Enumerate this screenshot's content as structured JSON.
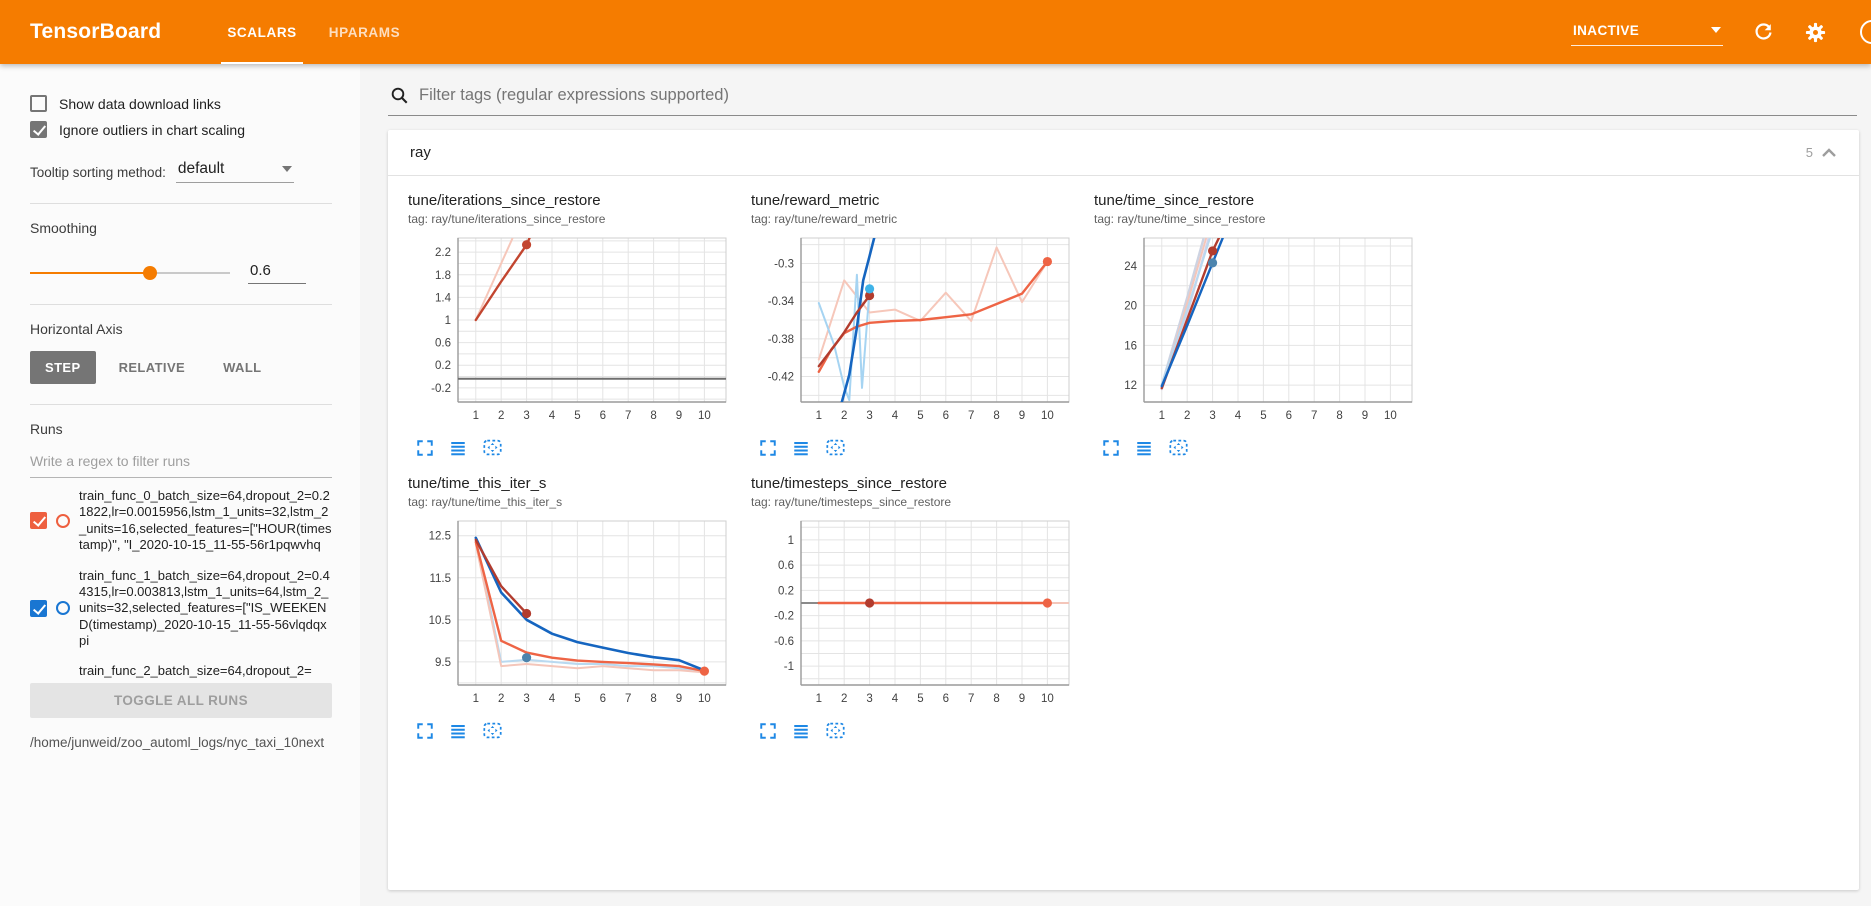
{
  "header": {
    "title": "TensorBoard",
    "tabs": [
      {
        "label": "SCALARS",
        "active": true
      },
      {
        "label": "HPARAMS",
        "active": false
      }
    ],
    "status_select": {
      "value": "INACTIVE"
    },
    "colors": {
      "bar": "#f57c00",
      "icon_blue": "#1e88e5"
    }
  },
  "sidebar": {
    "checkboxes": [
      {
        "label": "Show data download links",
        "checked": false
      },
      {
        "label": "Ignore outliers in chart scaling",
        "checked": true
      }
    ],
    "tooltip_sorting": {
      "label": "Tooltip sorting method:",
      "value": "default"
    },
    "smoothing": {
      "label": "Smoothing",
      "value": "0.6",
      "percent": 60
    },
    "horizontal_axis": {
      "label": "Horizontal Axis",
      "options": [
        "STEP",
        "RELATIVE",
        "WALL"
      ],
      "selected": "STEP"
    },
    "runs": {
      "label": "Runs",
      "filter_placeholder": "Write a regex to filter runs",
      "items": [
        {
          "name": "train_func_0_batch_size=64,dropout_2=0.21822,lr=0.0015956,lstm_1_units=32,lstm_2_units=16,selected_features=[\"HOUR(timestamp)\", \"I_2020-10-15_11-55-56r1pqwvhq",
          "checked": true,
          "color": "#ee5f3f"
        },
        {
          "name": "train_func_1_batch_size=64,dropout_2=0.44315,lr=0.003813,lstm_1_units=64,lstm_2_units=32,selected_features=[\"IS_WEEKEND(timestamp)_2020-10-15_11-55-56vlqdqxpi",
          "checked": true,
          "color": "#1976d2"
        },
        {
          "name": "train_func_2_batch_size=64,dropout_2=",
          "checked": true,
          "color": "#c2452f"
        }
      ],
      "toggle_all_label": "TOGGLE ALL RUNS",
      "log_path": "/home/junweid/zoo_automl_logs/nyc_taxi_10next"
    }
  },
  "main": {
    "filter_placeholder": "Filter tags (regular expressions supported)",
    "section": {
      "name": "ray",
      "count": "5"
    }
  },
  "chart_data": [
    {
      "type": "line",
      "title": "tune/iterations_since_restore",
      "tag": "tag: ray/tune/iterations_since_restore",
      "x_ticks": [
        1,
        2,
        3,
        4,
        5,
        6,
        7,
        8,
        9,
        10
      ],
      "y_ticks": [
        2.2,
        1.8,
        1.4,
        1,
        0.6,
        0.2,
        -0.2
      ],
      "xlim": [
        0.3,
        10.85
      ],
      "ylim": [
        -0.45,
        2.45
      ],
      "series": [
        {
          "name": "train_func_0 raw",
          "color": "#f6c7ba",
          "width": 2,
          "points": [
            [
              1,
              1
            ],
            [
              2,
              2
            ],
            [
              3,
              3
            ]
          ]
        },
        {
          "name": "train_func_0 smoothed",
          "color": "#c2452f",
          "width": 2.4,
          "points": [
            [
              1,
              1
            ],
            [
              2,
              1.68
            ],
            [
              3,
              2.33
            ],
            [
              3.6,
              2.95
            ]
          ]
        },
        {
          "name": "flat zero run",
          "color": "#6f6f6f",
          "width": 2,
          "points": [
            [
              0.3,
              -0.04
            ],
            [
              10.85,
              -0.04
            ]
          ]
        }
      ],
      "markers": [
        {
          "x": 3,
          "y": 2.33,
          "color": "#c2452f"
        }
      ]
    },
    {
      "type": "line",
      "title": "tune/reward_metric",
      "tag": "tag: ray/tune/reward_metric",
      "x_ticks": [
        1,
        2,
        3,
        4,
        5,
        6,
        7,
        8,
        9,
        10
      ],
      "y_ticks": [
        -0.3,
        -0.34,
        -0.38,
        -0.42
      ],
      "xlim": [
        0.3,
        10.85
      ],
      "ylim": [
        -0.447,
        -0.273
      ],
      "series": [
        {
          "name": "train_func_0 raw",
          "color": "#f6c7ba",
          "width": 2,
          "points": [
            [
              1,
              -0.402
            ],
            [
              2,
              -0.318
            ],
            [
              3,
              -0.352
            ],
            [
              4,
              -0.349
            ],
            [
              5,
              -0.361
            ],
            [
              6,
              -0.331
            ],
            [
              7,
              -0.361
            ],
            [
              8,
              -0.283
            ],
            [
              9,
              -0.341
            ],
            [
              10,
              -0.298
            ]
          ]
        },
        {
          "name": "train_func_1 raw",
          "color": "#a6d4f2",
          "width": 2,
          "points": [
            [
              1,
              -0.342
            ],
            [
              1.6,
              -0.386
            ],
            [
              2,
              -0.431
            ],
            [
              2.2,
              -0.445
            ],
            [
              2.5,
              -0.312
            ],
            [
              2.7,
              -0.432
            ],
            [
              3,
              -0.327
            ]
          ]
        },
        {
          "name": "train_func_0 smoothed",
          "color": "#ee6445",
          "width": 2.4,
          "points": [
            [
              1,
              -0.415
            ],
            [
              1.5,
              -0.391
            ],
            [
              2,
              -0.374
            ],
            [
              2.5,
              -0.367
            ],
            [
              3,
              -0.363
            ],
            [
              4,
              -0.361
            ],
            [
              5,
              -0.36
            ],
            [
              6,
              -0.357
            ],
            [
              7,
              -0.354
            ],
            [
              8,
              -0.343
            ],
            [
              9,
              -0.332
            ],
            [
              10,
              -0.298
            ]
          ]
        },
        {
          "name": "train_func_1 smoothed",
          "color": "#1565c0",
          "width": 2.6,
          "points": [
            [
              1.9,
              -0.448
            ],
            [
              2.2,
              -0.418
            ],
            [
              2.5,
              -0.368
            ],
            [
              2.75,
              -0.318
            ],
            [
              3,
              -0.292
            ],
            [
              3.35,
              -0.255
            ]
          ]
        },
        {
          "name": "train_func_2 smoothed",
          "color": "#b23c2e",
          "width": 2.4,
          "points": [
            [
              1,
              -0.409
            ],
            [
              1.6,
              -0.388
            ],
            [
              2,
              -0.373
            ],
            [
              2.5,
              -0.352
            ],
            [
              3,
              -0.334
            ]
          ]
        }
      ],
      "markers": [
        {
          "x": 3,
          "y": -0.334,
          "color": "#b23c2e"
        },
        {
          "x": 3,
          "y": -0.327,
          "color": "#3fb3e8"
        },
        {
          "x": 10,
          "y": -0.298,
          "color": "#ee6445"
        }
      ]
    },
    {
      "type": "line",
      "title": "tune/time_since_restore",
      "tag": "tag: ray/tune/time_since_restore",
      "x_ticks": [
        1,
        2,
        3,
        4,
        5,
        6,
        7,
        8,
        9,
        10
      ],
      "y_ticks": [
        24,
        20,
        16,
        12
      ],
      "xlim": [
        0.3,
        10.85
      ],
      "ylim": [
        10.3,
        26.8
      ],
      "series": [
        {
          "name": "raw lavender",
          "color": "#d8d2e8",
          "width": 2.4,
          "points": [
            [
              1,
              11.6
            ],
            [
              2,
              19.2
            ],
            [
              2.85,
              26.8
            ]
          ]
        },
        {
          "name": "raw gray-blue",
          "color": "#cdd3e2",
          "width": 2.4,
          "points": [
            [
              1,
              12
            ],
            [
              2,
              20.8
            ],
            [
              2.65,
              26.8
            ]
          ]
        },
        {
          "name": "train_func_0 raw",
          "color": "#f4c6ba",
          "width": 2,
          "points": [
            [
              1,
              11.8
            ],
            [
              2,
              20.2
            ],
            [
              2.75,
              26.8
            ]
          ]
        },
        {
          "name": "train_func_1 raw",
          "color": "#b9d9f0",
          "width": 2,
          "points": [
            [
              1,
              12.1
            ],
            [
              2,
              19.6
            ],
            [
              2.9,
              26.8
            ]
          ]
        },
        {
          "name": "train_func_2 smoothed",
          "color": "#b23c2e",
          "width": 2.4,
          "points": [
            [
              1,
              11.7
            ],
            [
              2,
              18.6
            ],
            [
              3,
              25.5
            ],
            [
              3.25,
              26.8
            ]
          ]
        },
        {
          "name": "train_func_1 smoothed",
          "color": "#1565c0",
          "width": 2.4,
          "points": [
            [
              1,
              11.9
            ],
            [
              2,
              18.0
            ],
            [
              3,
              24.3
            ],
            [
              3.4,
              26.8
            ]
          ]
        }
      ],
      "markers": [
        {
          "x": 3,
          "y": 25.5,
          "color": "#b23c2e"
        },
        {
          "x": 3,
          "y": 24.3,
          "color": "#4d84ad"
        }
      ]
    },
    {
      "type": "line",
      "title": "tune/time_this_iter_s",
      "tag": "tag: ray/tune/time_this_iter_s",
      "x_ticks": [
        1,
        2,
        3,
        4,
        5,
        6,
        7,
        8,
        9,
        10
      ],
      "y_ticks": [
        12.5,
        11.5,
        10.5,
        9.5
      ],
      "xlim": [
        0.3,
        10.85
      ],
      "ylim": [
        8.95,
        12.85
      ],
      "series": [
        {
          "name": "train_func_1 raw",
          "color": "#b9d9f0",
          "width": 2,
          "points": [
            [
              1,
              12.45
            ],
            [
              2,
              9.5
            ],
            [
              3,
              9.55
            ],
            [
              4,
              9.5
            ],
            [
              5,
              9.45
            ],
            [
              6,
              9.45
            ],
            [
              7,
              9.4
            ],
            [
              8,
              9.4
            ],
            [
              9,
              9.35
            ],
            [
              10,
              9.25
            ]
          ]
        },
        {
          "name": "train_func_0 raw",
          "color": "#f4c6ba",
          "width": 2,
          "points": [
            [
              1,
              12.3
            ],
            [
              2,
              9.4
            ],
            [
              3,
              9.45
            ],
            [
              4,
              9.4
            ],
            [
              5,
              9.35
            ],
            [
              6,
              9.4
            ],
            [
              7,
              9.35
            ],
            [
              8,
              9.3
            ],
            [
              9,
              9.3
            ],
            [
              10,
              9.25
            ]
          ]
        },
        {
          "name": "train_func_0 smoothed",
          "color": "#ee6445",
          "width": 2.4,
          "points": [
            [
              1,
              12.35
            ],
            [
              2,
              10.0
            ],
            [
              3,
              9.72
            ],
            [
              4,
              9.6
            ],
            [
              5,
              9.53
            ],
            [
              6,
              9.5
            ],
            [
              7,
              9.47
            ],
            [
              8,
              9.44
            ],
            [
              9,
              9.4
            ],
            [
              10,
              9.28
            ]
          ]
        },
        {
          "name": "train_func_1 smoothed",
          "color": "#1565c0",
          "width": 2.6,
          "points": [
            [
              1,
              12.45
            ],
            [
              2,
              11.15
            ],
            [
              3,
              10.5
            ],
            [
              4,
              10.17
            ],
            [
              5,
              9.97
            ],
            [
              6,
              9.84
            ],
            [
              7,
              9.71
            ],
            [
              8,
              9.61
            ],
            [
              9,
              9.54
            ],
            [
              10,
              9.3
            ]
          ]
        },
        {
          "name": "train_func_2 smoothed",
          "color": "#b23c2e",
          "width": 2.4,
          "points": [
            [
              1,
              12.4
            ],
            [
              2,
              11.3
            ],
            [
              3,
              10.65
            ]
          ]
        }
      ],
      "markers": [
        {
          "x": 3,
          "y": 10.65,
          "color": "#b23c2e"
        },
        {
          "x": 3,
          "y": 9.6,
          "color": "#4d84ad"
        },
        {
          "x": 10,
          "y": 9.28,
          "color": "#ee6445"
        }
      ]
    },
    {
      "type": "line",
      "title": "tune/timesteps_since_restore",
      "tag": "tag: ray/tune/timesteps_since_restore",
      "x_ticks": [
        1,
        2,
        3,
        4,
        5,
        6,
        7,
        8,
        9,
        10
      ],
      "y_ticks": [
        1,
        0.6,
        0.2,
        -0.2,
        -0.6,
        -1
      ],
      "xlim": [
        0.3,
        10.85
      ],
      "ylim": [
        -1.3,
        1.3
      ],
      "series": [
        {
          "name": "lead segment",
          "color": "#8a8a8a",
          "width": 2,
          "points": [
            [
              0.3,
              0
            ],
            [
              1,
              0
            ]
          ]
        },
        {
          "name": "train_func_0 smoothed",
          "color": "#ee6445",
          "width": 2.6,
          "points": [
            [
              1,
              0
            ],
            [
              10,
              0
            ]
          ]
        },
        {
          "name": "tail segment",
          "color": "#f4c6ba",
          "width": 2,
          "points": [
            [
              10,
              0
            ],
            [
              10.85,
              0
            ]
          ]
        }
      ],
      "markers": [
        {
          "x": 3,
          "y": 0,
          "color": "#b23c2e"
        },
        {
          "x": 10,
          "y": 0,
          "color": "#ee6445"
        }
      ]
    }
  ]
}
